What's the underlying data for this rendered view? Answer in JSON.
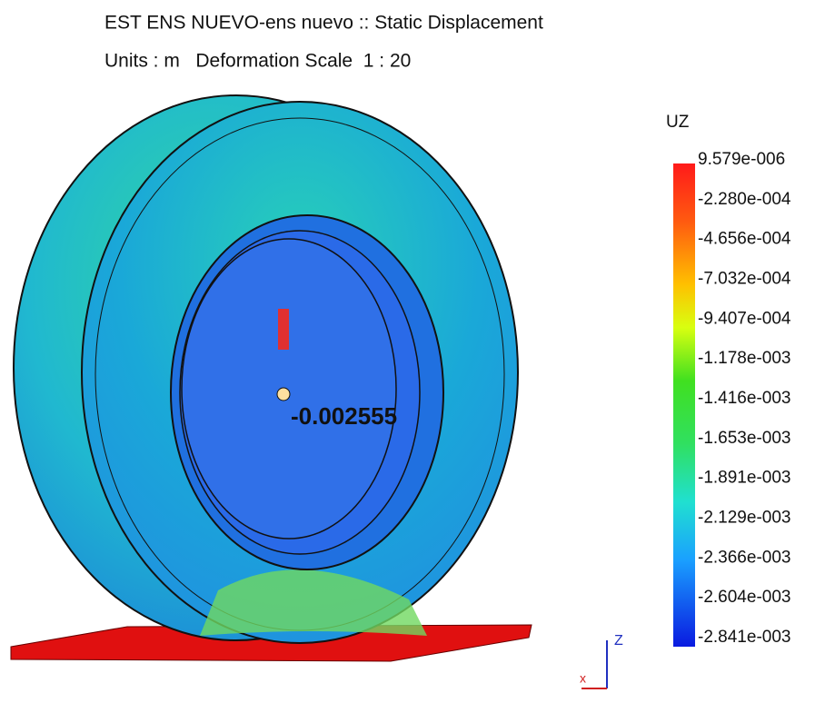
{
  "header": {
    "title": "EST ENS NUEVO-ens nuevo :: Static Displacement",
    "subtitle": "Units : m   Deformation Scale  1 : 20"
  },
  "legend": {
    "title": "UZ",
    "labels": [
      "9.579e-006",
      "-2.280e-004",
      "-4.656e-004",
      "-7.032e-004",
      "-9.407e-004",
      "-1.178e-003",
      "-1.416e-003",
      "-1.653e-003",
      "-1.891e-003",
      "-2.129e-003",
      "-2.366e-003",
      "-2.604e-003",
      "-2.841e-003"
    ]
  },
  "probe": {
    "label": "-0.002555"
  },
  "triad": {
    "z": "Z",
    "x": "x"
  }
}
